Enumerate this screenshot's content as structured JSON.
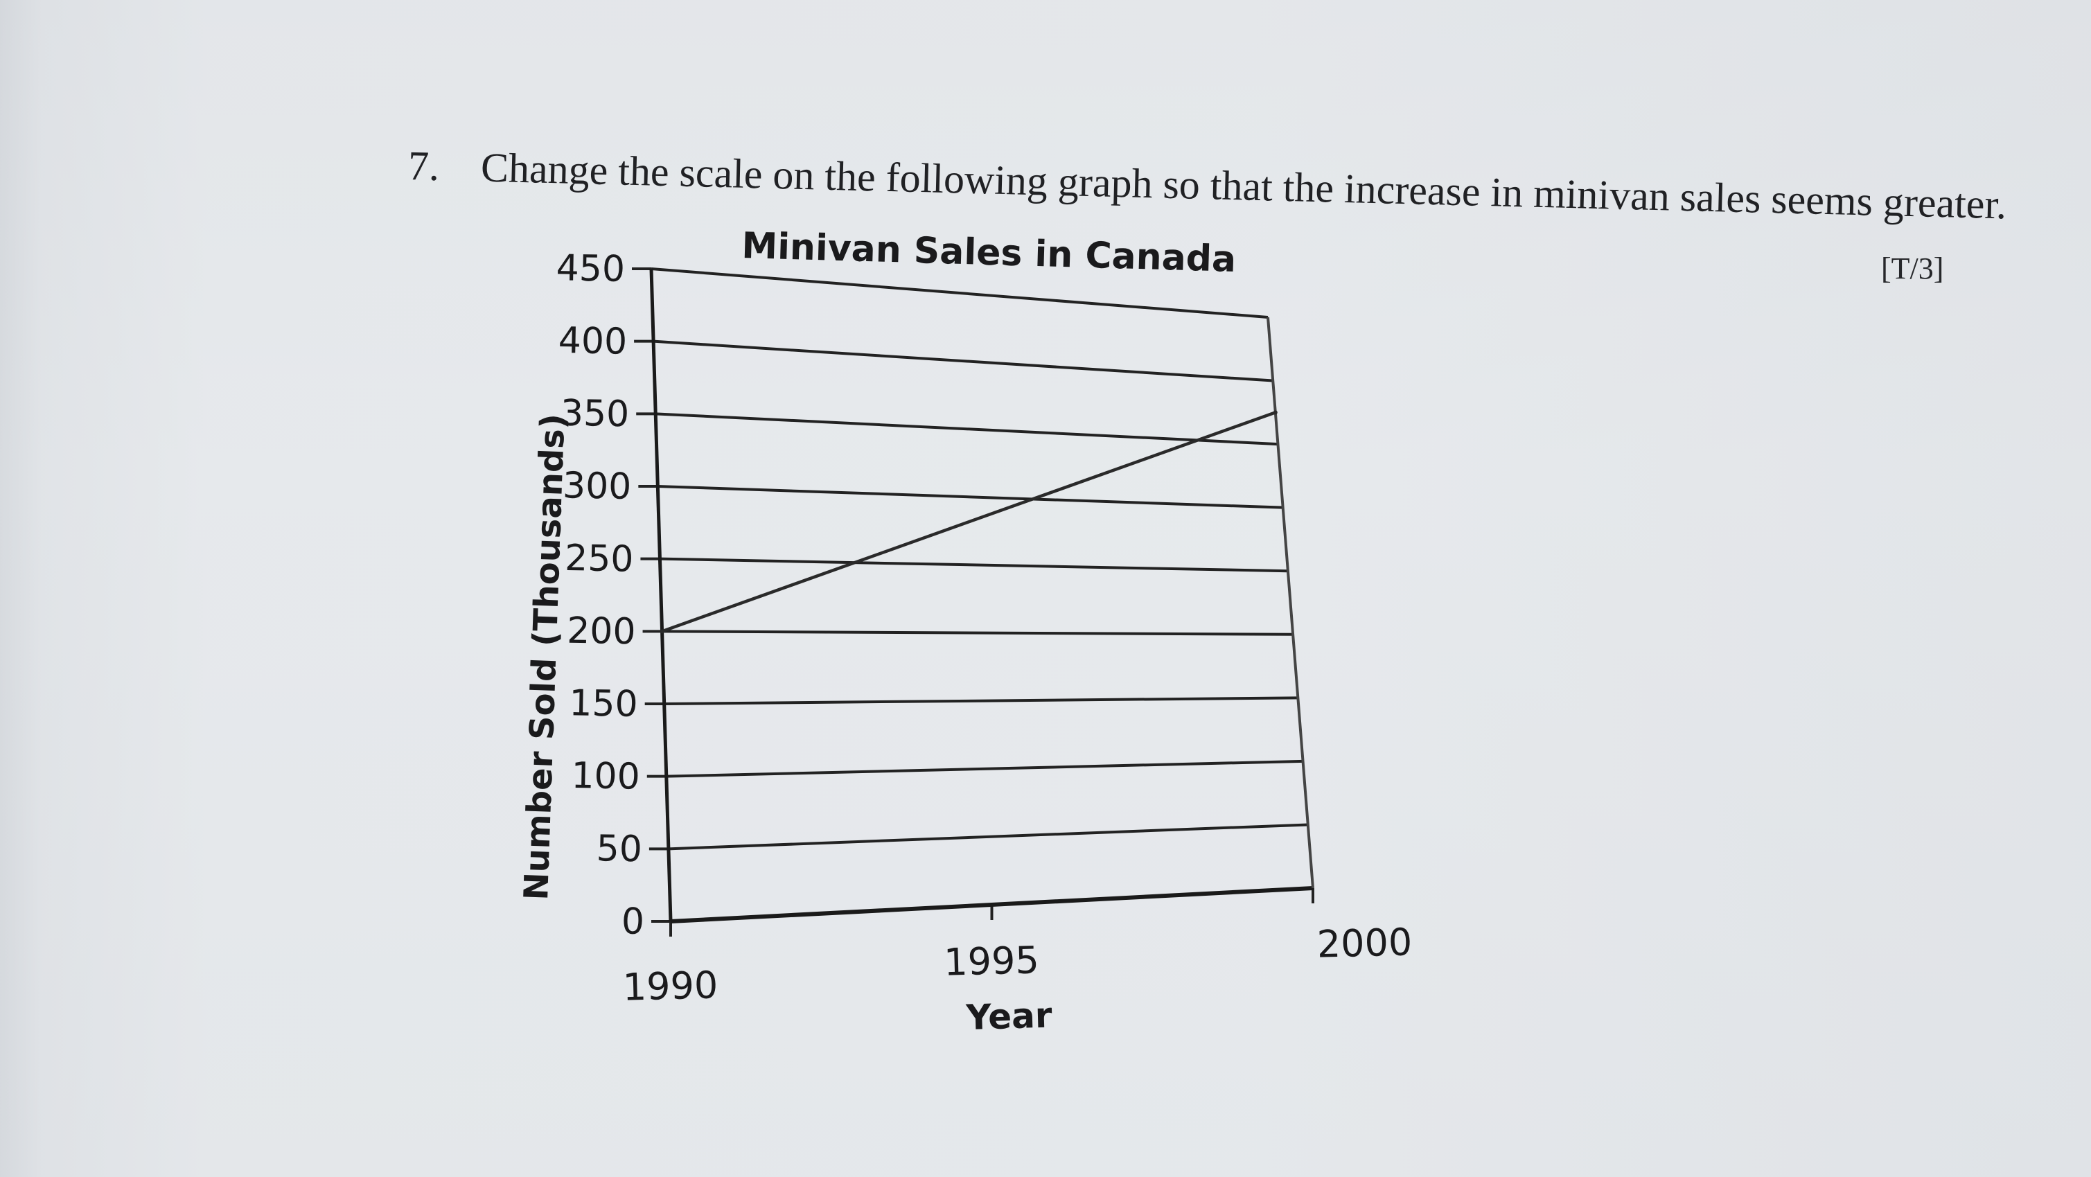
{
  "question": {
    "number": "7.",
    "text": "Change the scale on the following graph so that the increase in minivan sales seems greater.",
    "marks": "[T/3]"
  },
  "chart_data": {
    "type": "line",
    "title": "Minivan Sales in Canada",
    "xlabel": "Year",
    "ylabel": "Number Sold (Thousands)",
    "x": [
      1990,
      2000
    ],
    "x_ticks": [
      "1990",
      "1995",
      "2000"
    ],
    "y_ticks": [
      "0",
      "50",
      "100",
      "150",
      "200",
      "250",
      "300",
      "350",
      "400",
      "450"
    ],
    "xlim": [
      1990,
      2000
    ],
    "ylim": [
      0,
      450
    ],
    "grid": true,
    "series": [
      {
        "values": [
          200,
          375
        ]
      }
    ]
  }
}
